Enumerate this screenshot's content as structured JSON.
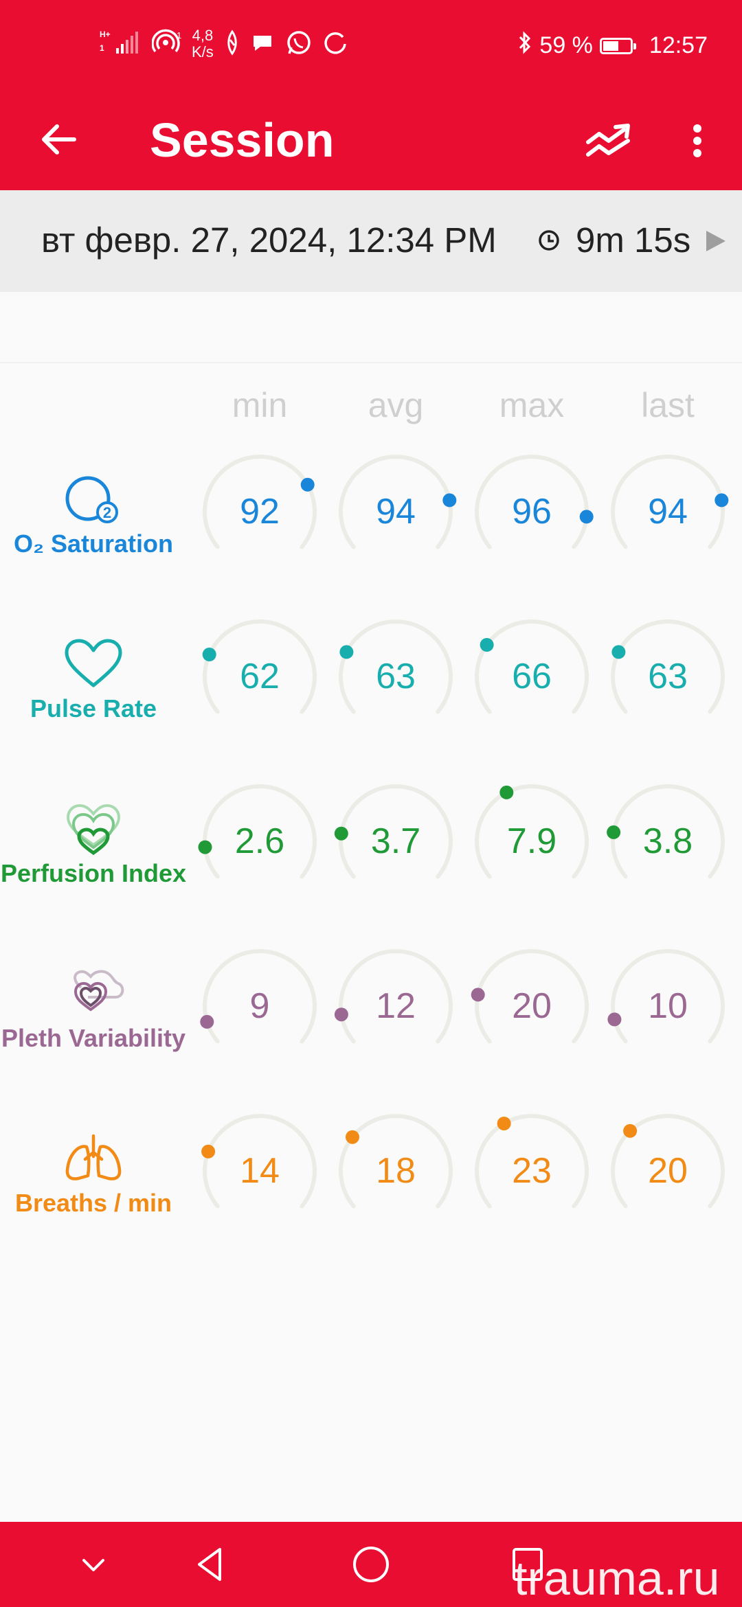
{
  "status_bar": {
    "signal": "H+ 1",
    "net_speed_value": "4,8",
    "net_speed_unit": "K/s",
    "battery_level": 0.59,
    "battery": "59 %",
    "time": "12:57"
  },
  "appbar": {
    "title": "Session",
    "icons": [
      "arrow-back-icon",
      "trends-icon",
      "more-vert-icon"
    ]
  },
  "session": {
    "date": "вт февр. 27, 2024, 12:34 PM",
    "duration": "9m 15s"
  },
  "columns": [
    "min",
    "avg",
    "max",
    "last"
  ],
  "metrics": [
    {
      "label": "O₂ Saturation",
      "icon": "o2-saturation-icon",
      "color": "#1a86d9",
      "values": [
        "92",
        "94",
        "96",
        "94"
      ]
    },
    {
      "label": "Pulse Rate",
      "icon": "heart-icon",
      "color": "#18aeae",
      "values": [
        "62",
        "63",
        "66",
        "63"
      ]
    },
    {
      "label": "Perfusion Index",
      "icon": "perfusion-hearts-icon",
      "color": "#1f9a36",
      "values": [
        "2.6",
        "3.7",
        "7.9",
        "3.8"
      ]
    },
    {
      "label": "Pleth Variability",
      "icon": "pleth-hearts-icon",
      "color": "#9a6892",
      "values": [
        "9",
        "12",
        "20",
        "10"
      ]
    },
    {
      "label": "Breaths / min",
      "icon": "lungs-icon",
      "color": "#f28a16",
      "values": [
        "14",
        "18",
        "23",
        "20"
      ]
    }
  ],
  "navbar": {
    "icons": [
      "hide-nav-icon",
      "back-icon",
      "home-icon",
      "recents-icon"
    ]
  },
  "watermark": "trauma.ru",
  "colors": {
    "accent": "#e90d32",
    "track": "#ecece6"
  }
}
